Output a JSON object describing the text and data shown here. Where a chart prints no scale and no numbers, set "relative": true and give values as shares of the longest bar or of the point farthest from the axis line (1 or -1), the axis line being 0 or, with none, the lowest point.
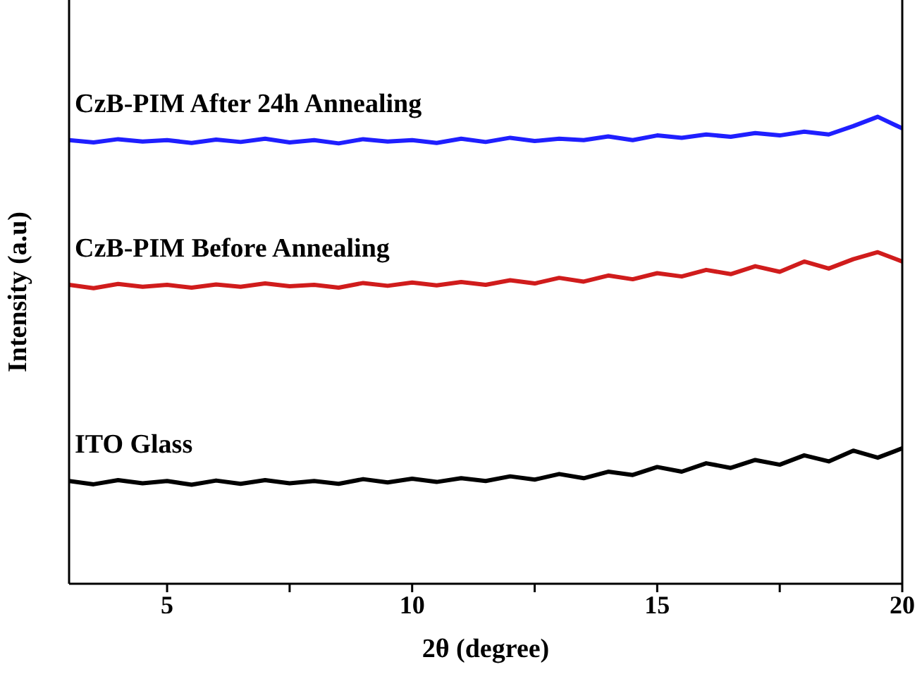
{
  "chart_data": {
    "type": "line",
    "xlabel": "2θ (degree)",
    "ylabel": "Intensity (a.u)",
    "relative": true,
    "x": [
      3,
      3.5,
      4,
      4.5,
      5,
      5.5,
      6,
      6.5,
      7,
      7.5,
      8,
      8.5,
      9,
      9.5,
      10,
      10.5,
      11,
      11.5,
      12,
      12.5,
      13,
      13.5,
      14,
      14.5,
      15,
      15.5,
      16,
      16.5,
      17,
      17.5,
      18,
      18.5,
      19,
      19.5,
      20
    ],
    "xlim": [
      3,
      20
    ],
    "xticks": [
      5,
      {
        "value": 7.5,
        "label": null
      },
      10,
      {
        "value": 12.5,
        "label": null
      },
      15,
      {
        "value": 17.5,
        "label": null
      },
      20
    ],
    "series": [
      {
        "name": "CzB-PIM After 24h Annealing",
        "color": "#1f1fff",
        "values": [
          0.95,
          0.945,
          0.952,
          0.947,
          0.95,
          0.944,
          0.951,
          0.946,
          0.953,
          0.945,
          0.95,
          0.943,
          0.952,
          0.947,
          0.95,
          0.944,
          0.953,
          0.946,
          0.955,
          0.948,
          0.953,
          0.95,
          0.958,
          0.95,
          0.96,
          0.955,
          0.962,
          0.957,
          0.965,
          0.96,
          0.968,
          0.962,
          0.98,
          1.0,
          0.975
        ]
      },
      {
        "name": "CzB-PIM Before Annealing",
        "color": "#d01c1c",
        "values": [
          0.64,
          0.633,
          0.642,
          0.636,
          0.64,
          0.634,
          0.641,
          0.636,
          0.643,
          0.637,
          0.64,
          0.634,
          0.644,
          0.638,
          0.645,
          0.639,
          0.646,
          0.64,
          0.65,
          0.643,
          0.655,
          0.647,
          0.66,
          0.652,
          0.665,
          0.658,
          0.672,
          0.663,
          0.68,
          0.668,
          0.69,
          0.675,
          0.695,
          0.71,
          0.69
        ]
      },
      {
        "name": "ITO Glass",
        "color": "#000000",
        "values": [
          0.22,
          0.213,
          0.222,
          0.215,
          0.22,
          0.212,
          0.221,
          0.214,
          0.222,
          0.215,
          0.22,
          0.214,
          0.224,
          0.217,
          0.225,
          0.218,
          0.226,
          0.22,
          0.23,
          0.223,
          0.235,
          0.226,
          0.24,
          0.233,
          0.25,
          0.24,
          0.258,
          0.248,
          0.265,
          0.255,
          0.275,
          0.262,
          0.285,
          0.27,
          0.29
        ]
      }
    ]
  }
}
